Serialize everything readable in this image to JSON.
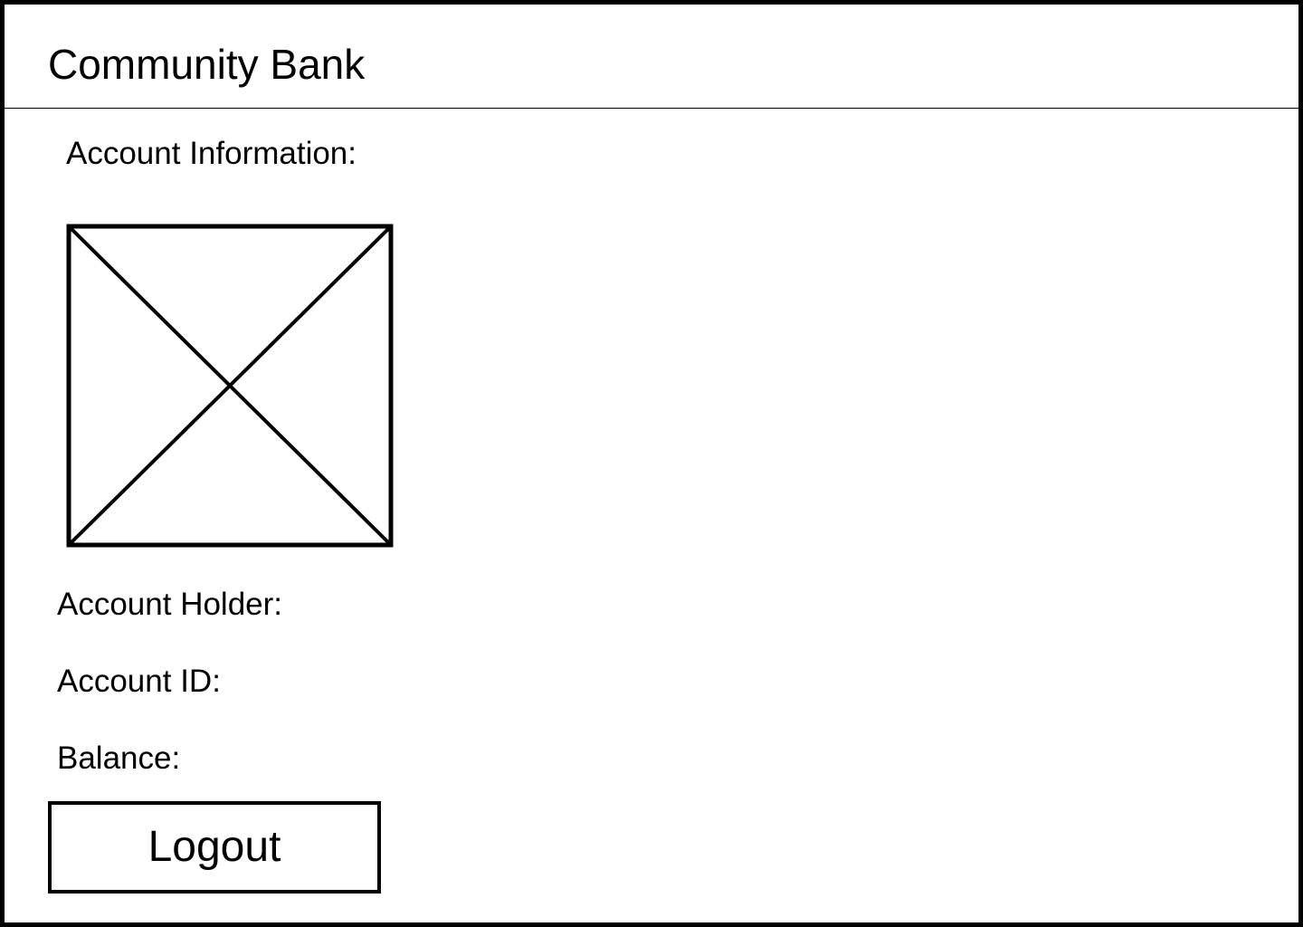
{
  "header": {
    "title": "Community Bank"
  },
  "account": {
    "section_title": "Account Information:",
    "avatar_icon": "image-placeholder-icon",
    "holder_label": "Account Holder:",
    "id_label": "Account ID:",
    "balance_label": "Balance:"
  },
  "actions": {
    "logout_label": "Logout"
  },
  "colors": {
    "border": "#000000",
    "background": "#ffffff",
    "text": "#000000"
  }
}
